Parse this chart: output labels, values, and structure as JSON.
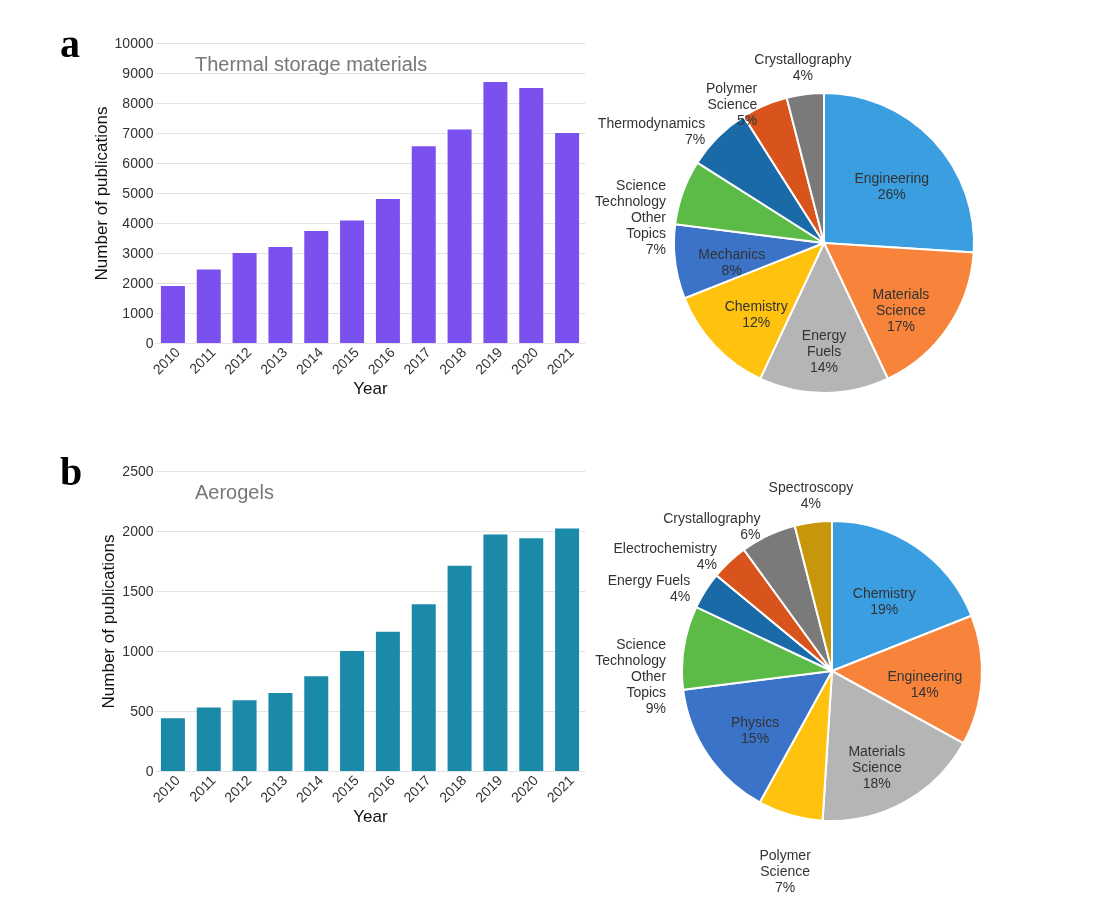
{
  "chart_data": [
    {
      "type": "bar",
      "title": "Thermal storage materials",
      "annotations": [
        "a"
      ],
      "xlabel": "Year",
      "ylabel": "Number of publications",
      "categories": [
        "2010",
        "2011",
        "2012",
        "2013",
        "2014",
        "2015",
        "2016",
        "2017",
        "2018",
        "2019",
        "2020",
        "2021"
      ],
      "values": [
        1900,
        2450,
        3000,
        3200,
        3730,
        4080,
        4800,
        6560,
        7120,
        8700,
        8500,
        7000
      ],
      "color": "#7a50ee",
      "ylim": [
        0,
        10000
      ],
      "yticks": [
        0,
        1000,
        2000,
        3000,
        4000,
        5000,
        6000,
        7000,
        8000,
        9000,
        10000
      ],
      "grid": "y"
    },
    {
      "type": "pie",
      "categories": [
        "Engineering",
        "Materials Science",
        "Energy Fuels",
        "Chemistry",
        "Mechanics",
        "Science Technology Other Topics",
        "Thermodynamics",
        "Polymer Science",
        "Crystallography"
      ],
      "values": [
        26,
        17,
        14,
        12,
        8,
        7,
        7,
        5,
        4
      ],
      "value_labels": [
        "26%",
        "17%",
        "14%",
        "12%",
        "8%",
        "7%",
        "7%",
        "5%",
        "4%"
      ],
      "colors": [
        "#3a9ee0",
        "#f7843a",
        "#b5b5b5",
        "#ffc20e",
        "#3b73c8",
        "#5cba47",
        "#1a6aa8",
        "#d9541c",
        "#7a7a7a"
      ]
    },
    {
      "type": "bar",
      "title": "Aerogels",
      "annotations": [
        "b"
      ],
      "xlabel": "Year",
      "ylabel": "Number of publications",
      "categories": [
        "2010",
        "2011",
        "2012",
        "2013",
        "2014",
        "2015",
        "2016",
        "2017",
        "2018",
        "2019",
        "2020",
        "2021"
      ],
      "values": [
        440,
        530,
        590,
        650,
        790,
        1000,
        1160,
        1390,
        1710,
        1970,
        1940,
        2020
      ],
      "color": "#1a8aa8",
      "ylim": [
        0,
        2500
      ],
      "yticks": [
        0,
        500,
        1000,
        1500,
        2000,
        2500
      ],
      "grid": "y"
    },
    {
      "type": "pie",
      "categories": [
        "Chemistry",
        "Engineering",
        "Materials Science",
        "Polymer Science",
        "Physics",
        "Science Technology Other Topics",
        "Energy Fuels",
        "Electrochemistry",
        "Crystallography",
        "Spectroscopy"
      ],
      "values": [
        19,
        14,
        18,
        7,
        15,
        9,
        4,
        4,
        6,
        4
      ],
      "value_labels": [
        "19%",
        "14%",
        "18%",
        "7%",
        "15%",
        "9%",
        "4%",
        "4%",
        "6%",
        "4%"
      ],
      "colors": [
        "#3a9ee0",
        "#f7843a",
        "#b5b5b5",
        "#ffc20e",
        "#3b73c8",
        "#5cba47",
        "#1a6aa8",
        "#d9541c",
        "#7a7a7a",
        "#c8960a"
      ]
    }
  ]
}
